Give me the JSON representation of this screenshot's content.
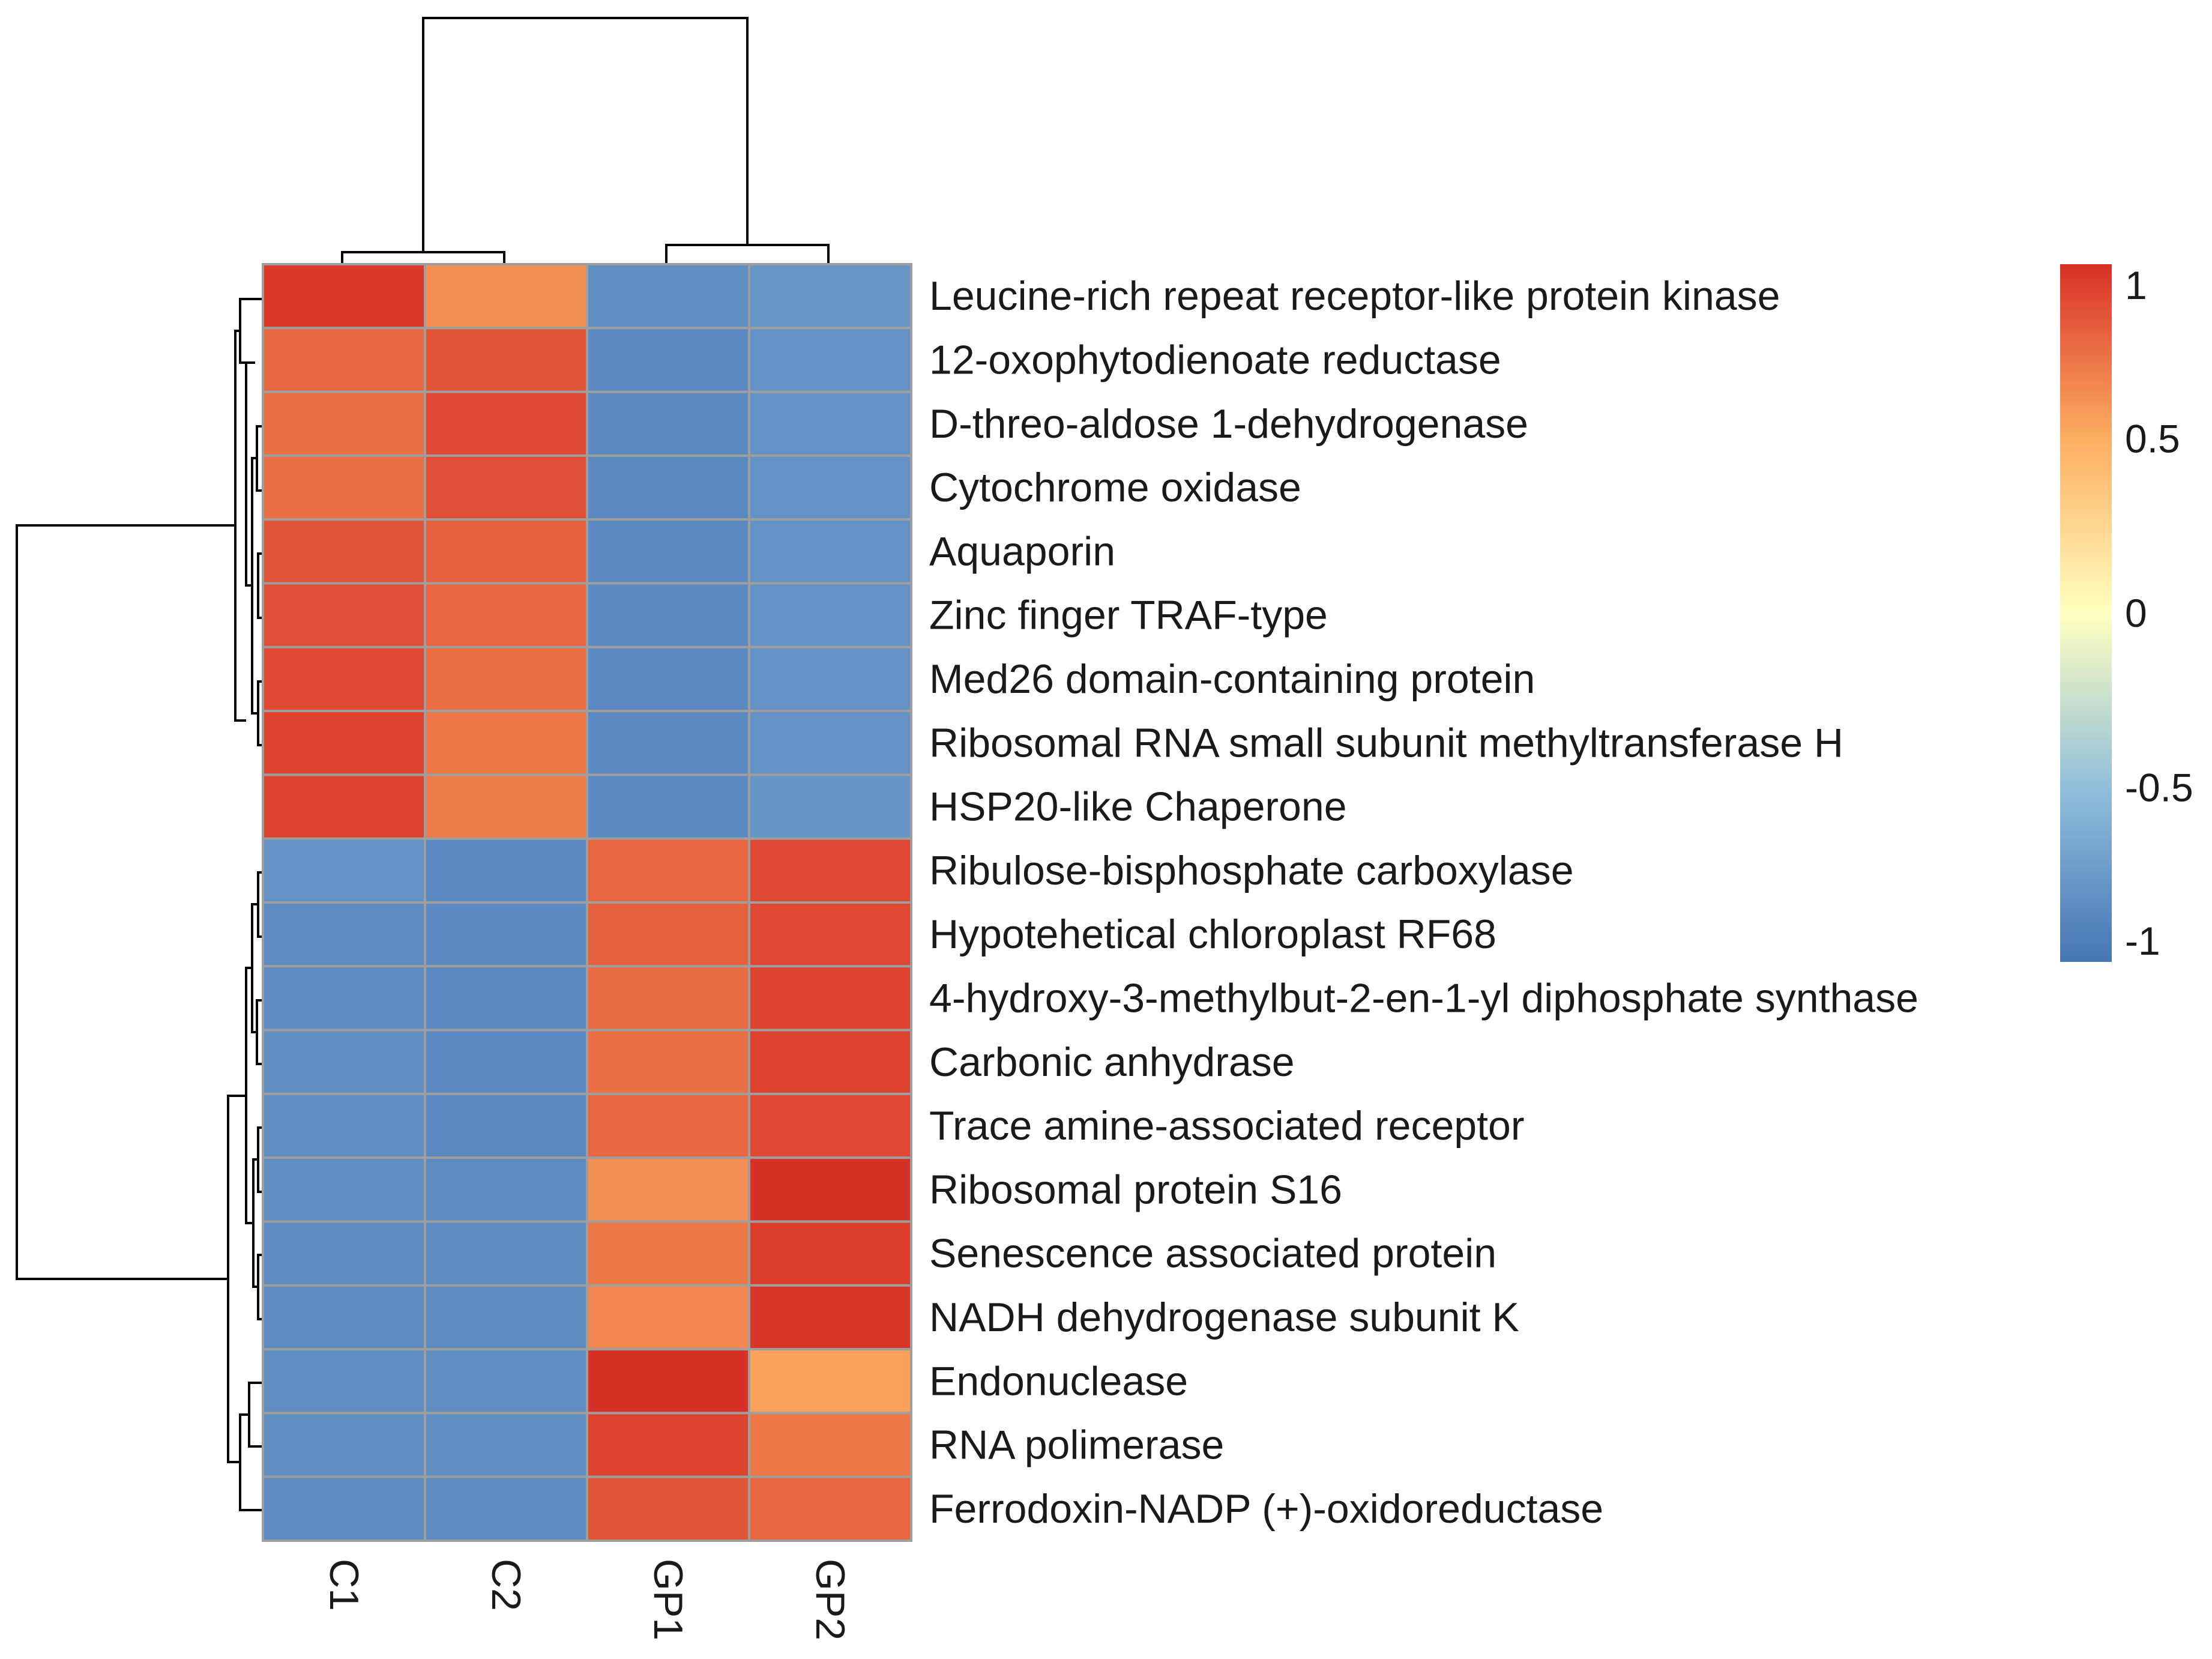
{
  "chart_data": {
    "type": "heatmap",
    "columns": [
      "C1",
      "C2",
      "GP1",
      "GP2"
    ],
    "rows": [
      "Leucine-rich repeat receptor-like protein kinase",
      "12-oxophytodienoate reductase",
      "D-threo-aldose 1-dehydrogenase",
      "Cytochrome oxidase",
      "Aquaporin",
      "Zinc finger TRAF-type",
      "Med26 domain-containing protein",
      "Ribosomal RNA small subunit methyltransferase H",
      "HSP20-like Chaperone",
      "Ribulose-bisphosphate carboxylase",
      "Hypotehetical chloroplast RF68",
      "4-hydroxy-3-methylbut-2-en-1-yl diphosphate synthase",
      "Carbonic anhydrase",
      "Trace amine-associated receptor",
      "Ribosomal protein S16",
      "Senescence associated protein",
      "NADH dehydrogenase subunit K",
      "Endonuclease",
      "RNA polimerase",
      "Ferrodoxin-NADP (+)-oxidoreductase"
    ],
    "values": [
      [
        0.97,
        0.62,
        -0.82,
        -0.77
      ],
      [
        0.78,
        0.85,
        -0.86,
        -0.8
      ],
      [
        0.75,
        0.9,
        -0.86,
        -0.8
      ],
      [
        0.75,
        0.88,
        -0.86,
        -0.8
      ],
      [
        0.85,
        0.8,
        -0.86,
        -0.8
      ],
      [
        0.88,
        0.78,
        -0.86,
        -0.8
      ],
      [
        0.9,
        0.75,
        -0.86,
        -0.8
      ],
      [
        0.92,
        0.72,
        -0.86,
        -0.8
      ],
      [
        0.92,
        0.7,
        -0.86,
        -0.78
      ],
      [
        -0.8,
        -0.86,
        0.78,
        0.9
      ],
      [
        -0.84,
        -0.86,
        0.8,
        0.9
      ],
      [
        -0.84,
        -0.86,
        0.76,
        0.92
      ],
      [
        -0.82,
        -0.86,
        0.75,
        0.93
      ],
      [
        -0.82,
        -0.86,
        0.78,
        0.9
      ],
      [
        -0.82,
        -0.84,
        0.62,
        1.0
      ],
      [
        -0.84,
        -0.84,
        0.72,
        0.95
      ],
      [
        -0.84,
        -0.84,
        0.66,
        0.98
      ],
      [
        -0.82,
        -0.82,
        1.0,
        0.55
      ],
      [
        -0.82,
        -0.82,
        0.92,
        0.72
      ],
      [
        -0.84,
        -0.84,
        0.85,
        0.78
      ]
    ],
    "color_scale": {
      "min": -1,
      "max": 1,
      "stops": [
        {
          "value": -1,
          "color": "#4575b4"
        },
        {
          "value": -0.5,
          "color": "#91bfdb"
        },
        {
          "value": 0,
          "color": "#ffffbf"
        },
        {
          "value": 0.5,
          "color": "#fdae61"
        },
        {
          "value": 1,
          "color": "#d73027"
        }
      ]
    },
    "legend": {
      "ticks": [
        "1",
        "0.5",
        "0",
        "-0.5",
        "-1"
      ],
      "tick_values": [
        1,
        0.5,
        0,
        -0.5,
        -1
      ],
      "placement": "right"
    },
    "row_dendrogram": true,
    "column_dendrogram": true
  }
}
